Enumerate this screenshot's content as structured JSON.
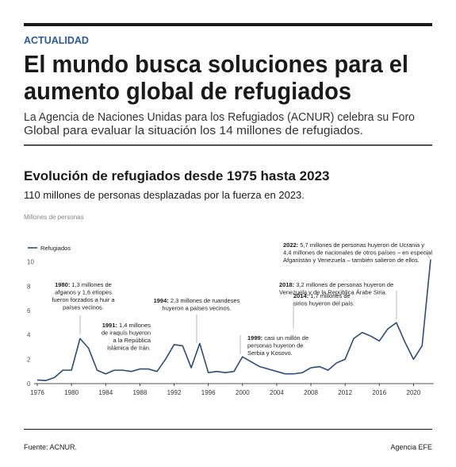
{
  "header": {
    "section": "ACTUALIDAD",
    "title_lines": [
      "El mundo busca soluciones para el",
      "aumento global de refugiados"
    ],
    "subtitle_lines": [
      "La Agencia de Naciones Unidas para los Refugiados (ACNUR) celebra su Foro",
      "Global para evaluar la situación los 14 millones de refugiados."
    ]
  },
  "chart_data": {
    "type": "line",
    "title": "Evolución de refugiados desde 1975 hasta 2023",
    "subtitle": "110 millones de personas desplazadas por la fuerza en 2023.",
    "y_label": "Millones de personas",
    "x": [
      1976,
      1977,
      1978,
      1979,
      1980,
      1981,
      1982,
      1983,
      1984,
      1985,
      1986,
      1987,
      1988,
      1989,
      1990,
      1991,
      1992,
      1993,
      1994,
      1995,
      1996,
      1997,
      1998,
      1999,
      2000,
      2001,
      2002,
      2003,
      2004,
      2005,
      2006,
      2007,
      2008,
      2009,
      2010,
      2011,
      2012,
      2013,
      2014,
      2015,
      2016,
      2017,
      2018,
      2019,
      2020,
      2021,
      2022
    ],
    "series": [
      {
        "name": "Refugiados",
        "color": "#2b4c7e",
        "values": [
          0.3,
          0.25,
          0.5,
          1.1,
          1.1,
          3.7,
          2.9,
          1.1,
          0.8,
          1.1,
          1.1,
          1.0,
          1.2,
          1.2,
          1.0,
          2.0,
          3.2,
          3.1,
          1.3,
          3.3,
          0.9,
          1.0,
          0.9,
          1.0,
          2.2,
          1.8,
          1.4,
          1.2,
          1.0,
          0.8,
          0.8,
          0.9,
          1.3,
          1.4,
          1.1,
          1.7,
          2.0,
          3.7,
          4.2,
          3.9,
          3.5,
          4.5,
          5.0,
          3.4,
          2.0,
          3.1,
          10.2
        ]
      }
    ],
    "xlim": [
      1976,
      2022
    ],
    "xticks": [
      1976,
      1980,
      1984,
      1988,
      1992,
      1996,
      2000,
      2004,
      2008,
      2012,
      2016,
      2020
    ],
    "ylim": [
      0,
      12
    ],
    "yticks": [
      0,
      2,
      4,
      6,
      8,
      10
    ],
    "legend": "upper left",
    "annotations": [
      {
        "lead": "1980:",
        "lines": [
          " 1,3 millones de",
          "afganos y 1,6 etíopes",
          "fueron forzados a huir a",
          "países vecinos."
        ]
      },
      {
        "lead": "1991:",
        "lines": [
          " 1,4 millones",
          "de iraquís huyeron",
          "a la República",
          "Islámica de Irán."
        ]
      },
      {
        "lead": "1994:",
        "lines": [
          " 2,3 millones de ruandeses",
          "huyeron a países vecinos."
        ]
      },
      {
        "lead": "1999:",
        "lines": [
          " casi un millón de",
          "personas huyeron de",
          "Serbia y Kosovo."
        ]
      },
      {
        "lead": "2014:",
        "lines": [
          " 1,7 millones de",
          "sirios huyeron del país."
        ]
      },
      {
        "lead": "2018:",
        "lines": [
          " 3,2 millones de personas huyeron de",
          "Venezuela y de la República Árabe Siria."
        ]
      },
      {
        "lead": "2022:",
        "lines": [
          " 5,7 millones de personas huyeron de Ucrania y",
          "4,4 millones de nacionales de otros países – en especial",
          "Afganistán y Venezuela – también salieron de ellos."
        ]
      }
    ]
  },
  "footer": {
    "source": "Fuente: ACNUR.",
    "agency": "Agencia EFE"
  }
}
